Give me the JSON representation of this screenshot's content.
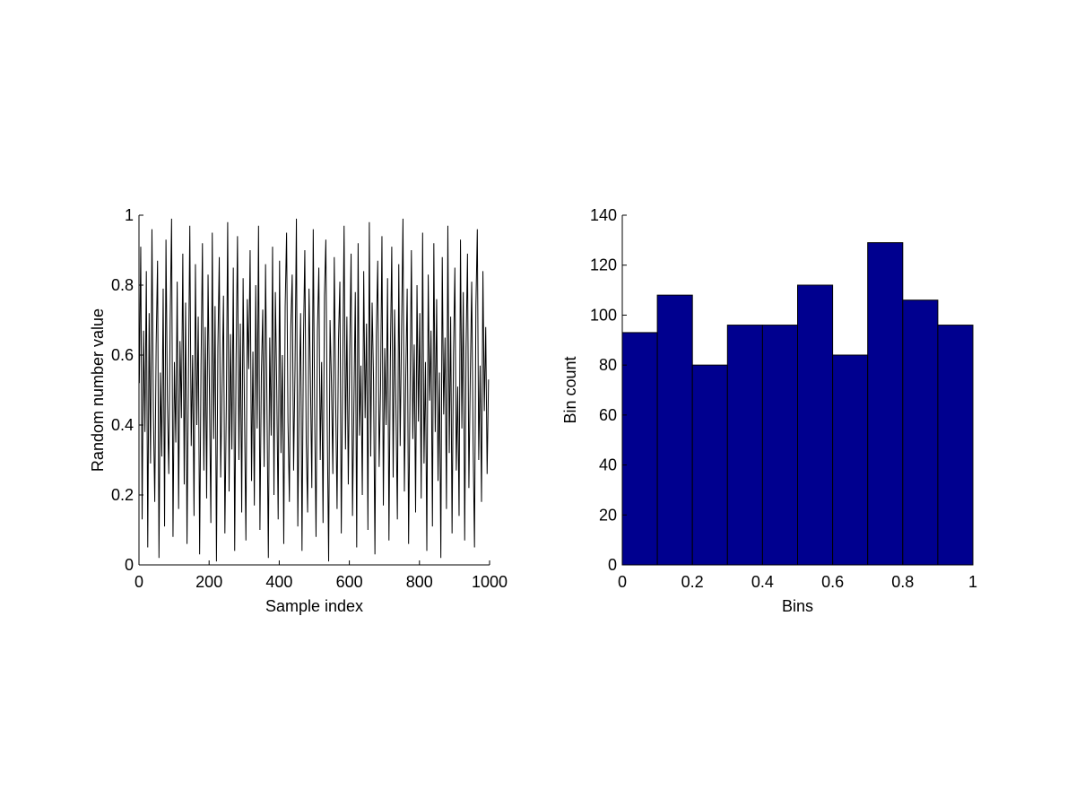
{
  "chart_data": [
    {
      "type": "line",
      "xlabel": "Sample index",
      "ylabel": "Random number value",
      "color": "#000000",
      "x": [
        1,
        5,
        9,
        13,
        17,
        21,
        25,
        29,
        33,
        37,
        41,
        45,
        49,
        53,
        57,
        61,
        65,
        69,
        73,
        77,
        81,
        85,
        89,
        93,
        97,
        101,
        105,
        109,
        113,
        117,
        121,
        125,
        129,
        133,
        137,
        141,
        145,
        149,
        153,
        157,
        161,
        165,
        169,
        173,
        177,
        181,
        185,
        189,
        193,
        197,
        201,
        205,
        209,
        213,
        217,
        221,
        225,
        229,
        233,
        237,
        241,
        245,
        249,
        253,
        257,
        261,
        265,
        269,
        273,
        277,
        281,
        285,
        289,
        293,
        297,
        301,
        305,
        309,
        313,
        317,
        321,
        325,
        329,
        333,
        337,
        341,
        345,
        349,
        353,
        357,
        361,
        365,
        369,
        373,
        377,
        381,
        385,
        389,
        393,
        397,
        401,
        405,
        409,
        413,
        417,
        421,
        425,
        429,
        433,
        437,
        441,
        445,
        449,
        453,
        457,
        461,
        465,
        469,
        473,
        477,
        481,
        485,
        489,
        493,
        497,
        501,
        505,
        509,
        513,
        517,
        521,
        525,
        529,
        533,
        537,
        541,
        545,
        549,
        553,
        557,
        561,
        565,
        569,
        573,
        577,
        581,
        585,
        589,
        593,
        597,
        601,
        605,
        609,
        613,
        617,
        621,
        625,
        629,
        633,
        637,
        641,
        645,
        649,
        653,
        657,
        661,
        665,
        669,
        673,
        677,
        681,
        685,
        689,
        693,
        697,
        701,
        705,
        709,
        713,
        717,
        721,
        725,
        729,
        733,
        737,
        741,
        745,
        749,
        753,
        757,
        761,
        765,
        769,
        773,
        777,
        781,
        785,
        789,
        793,
        797,
        801,
        805,
        809,
        813,
        817,
        821,
        825,
        829,
        833,
        837,
        841,
        845,
        849,
        853,
        857,
        861,
        865,
        869,
        873,
        877,
        881,
        885,
        889,
        893,
        897,
        901,
        905,
        909,
        913,
        917,
        921,
        925,
        929,
        933,
        937,
        941,
        945,
        949,
        953,
        957,
        961,
        965,
        969,
        973,
        977,
        981,
        985,
        989,
        993,
        997
      ],
      "values": [
        0.52,
        0.91,
        0.13,
        0.67,
        0.38,
        0.84,
        0.05,
        0.72,
        0.29,
        0.96,
        0.44,
        0.18,
        0.63,
        0.87,
        0.02,
        0.55,
        0.31,
        0.79,
        0.11,
        0.93,
        0.47,
        0.26,
        0.7,
        0.99,
        0.08,
        0.58,
        0.35,
        0.81,
        0.16,
        0.64,
        0.42,
        0.89,
        0.23,
        0.75,
        0.06,
        0.53,
        0.97,
        0.34,
        0.6,
        0.14,
        0.86,
        0.4,
        0.71,
        0.03,
        0.57,
        0.92,
        0.27,
        0.68,
        0.19,
        0.83,
        0.49,
        0.12,
        0.95,
        0.36,
        0.74,
        0.01,
        0.62,
        0.88,
        0.25,
        0.51,
        0.77,
        0.09,
        0.45,
        0.98,
        0.21,
        0.66,
        0.33,
        0.85,
        0.04,
        0.59,
        0.94,
        0.3,
        0.69,
        0.15,
        0.82,
        0.43,
        0.07,
        0.76,
        0.56,
        0.9,
        0.24,
        0.61,
        0.17,
        0.8,
        0.39,
        0.97,
        0.1,
        0.54,
        0.73,
        0.28,
        0.86,
        0.46,
        0.02,
        0.65,
        0.37,
        0.91,
        0.2,
        0.78,
        0.5,
        0.13,
        0.87,
        0.32,
        0.6,
        0.06,
        0.74,
        0.95,
        0.41,
        0.18,
        0.68,
        0.83,
        0.27,
        0.56,
        0.99,
        0.11,
        0.48,
        0.72,
        0.04,
        0.63,
        0.9,
        0.35,
        0.15,
        0.79,
        0.53,
        0.22,
        0.96,
        0.44,
        0.08,
        0.67,
        0.85,
        0.3,
        0.58,
        0.12,
        0.77,
        0.93,
        0.39,
        0.01,
        0.7,
        0.52,
        0.26,
        0.88,
        0.47,
        0.16,
        0.64,
        0.81,
        0.09,
        0.55,
        0.97,
        0.33,
        0.71,
        0.23,
        0.61,
        0.89,
        0.14,
        0.46,
        0.78,
        0.05,
        0.92,
        0.37,
        0.57,
        0.2,
        0.84,
        0.42,
        0.69,
        0.1,
        0.98,
        0.31,
        0.75,
        0.53,
        0.03,
        0.66,
        0.87,
        0.28,
        0.5,
        0.94,
        0.17,
        0.62,
        0.4,
        0.82,
        0.07,
        0.59,
        0.91,
        0.25,
        0.73,
        0.45,
        0.13,
        0.86,
        0.34,
        0.68,
        0.99,
        0.21,
        0.54,
        0.79,
        0.06,
        0.48,
        0.9,
        0.36,
        0.63,
        0.15,
        0.8,
        0.41,
        0.72,
        0.19,
        0.95,
        0.29,
        0.58,
        0.04,
        0.83,
        0.47,
        0.67,
        0.11,
        0.92,
        0.38,
        0.76,
        0.24,
        0.55,
        0.02,
        0.88,
        0.43,
        0.65,
        0.16,
        0.97,
        0.32,
        0.71,
        0.09,
        0.6,
        0.85,
        0.27,
        0.51,
        0.14,
        0.93,
        0.39,
        0.78,
        0.07,
        0.62,
        0.89,
        0.22,
        0.54,
        0.81,
        0.35,
        0.05,
        0.74,
        0.96,
        0.3,
        0.57,
        0.18,
        0.84,
        0.44,
        0.68,
        0.26,
        0.53
      ],
      "xlim": [
        0,
        1000
      ],
      "ylim": [
        0,
        1
      ],
      "xticks": [
        0,
        200,
        400,
        600,
        800,
        1000
      ],
      "yticks": [
        0,
        0.2,
        0.4,
        0.6,
        0.8,
        1
      ]
    },
    {
      "type": "histogram",
      "xlabel": "Bins",
      "ylabel": "Bin count",
      "color": "#00008f",
      "bins": [
        0,
        0.1,
        0.2,
        0.3,
        0.4,
        0.5,
        0.6,
        0.7,
        0.8,
        0.9,
        1
      ],
      "values": [
        93,
        108,
        80,
        96,
        96,
        112,
        84,
        129,
        106,
        96
      ],
      "xlim": [
        0,
        1
      ],
      "ylim": [
        0,
        140
      ],
      "xticks": [
        0,
        0.2,
        0.4,
        0.6,
        0.8,
        1
      ],
      "yticks": [
        0,
        20,
        40,
        60,
        80,
        100,
        120,
        140
      ]
    }
  ]
}
